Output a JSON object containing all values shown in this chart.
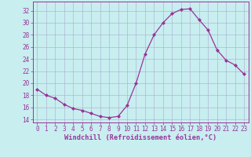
{
  "x": [
    0,
    1,
    2,
    3,
    4,
    5,
    6,
    7,
    8,
    9,
    10,
    11,
    12,
    13,
    14,
    15,
    16,
    17,
    18,
    19,
    20,
    21,
    22,
    23
  ],
  "y": [
    19.0,
    18.0,
    17.5,
    16.5,
    15.8,
    15.5,
    15.0,
    14.5,
    14.3,
    14.5,
    16.3,
    20.0,
    24.8,
    28.0,
    30.0,
    31.5,
    32.2,
    32.3,
    30.5,
    28.8,
    25.5,
    23.8,
    23.0,
    21.5
  ],
  "line_color": "#993399",
  "marker": "D",
  "marker_size": 2.0,
  "bg_color": "#c8eef0",
  "grid_color": "#aaaacc",
  "ylabel_ticks": [
    14,
    16,
    18,
    20,
    22,
    24,
    26,
    28,
    30,
    32
  ],
  "xlim": [
    -0.5,
    23.5
  ],
  "ylim": [
    13.5,
    33.5
  ],
  "xlabel": "Windchill (Refroidissement éolien,°C)",
  "tick_label_color": "#993399",
  "axis_color": "#993399",
  "tick_fontsize": 5.5,
  "xlabel_fontsize": 6.2
}
